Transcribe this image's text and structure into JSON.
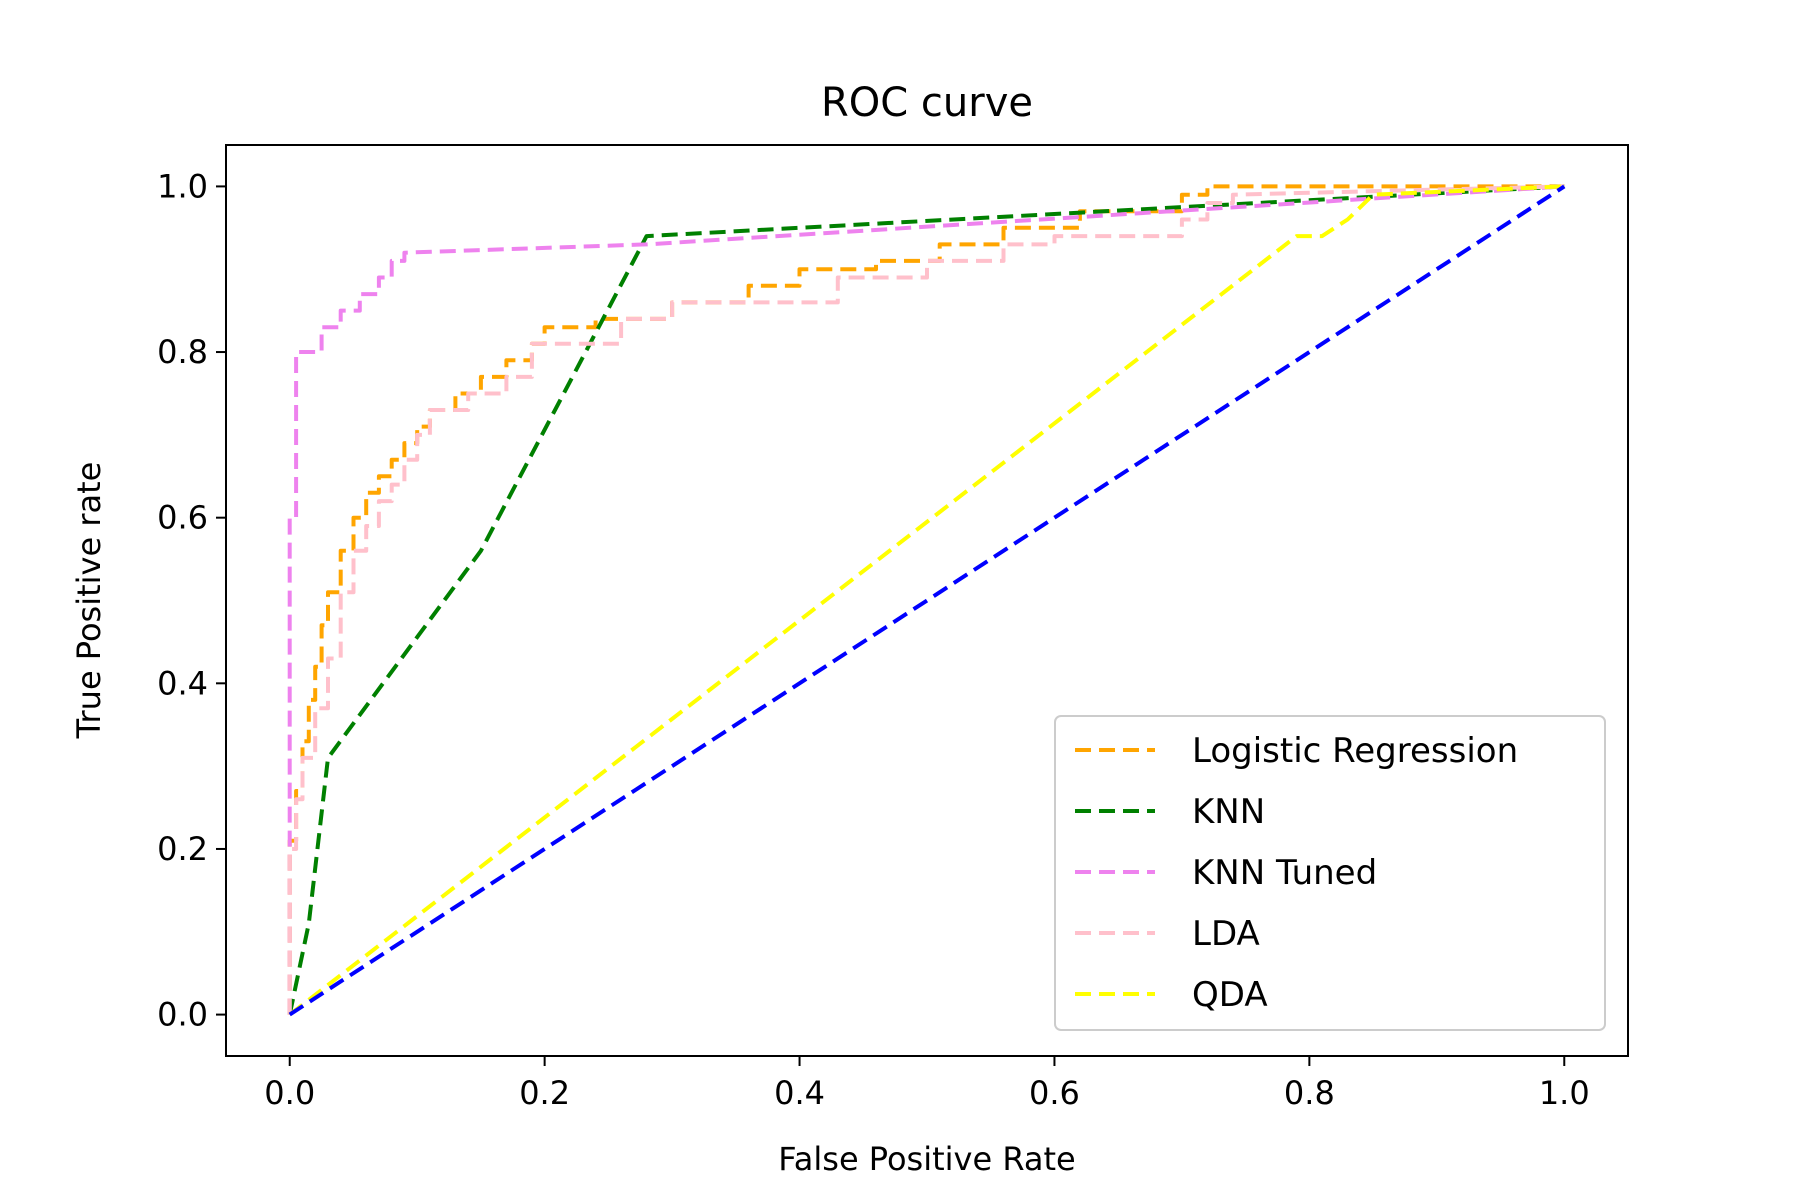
{
  "chart_data": {
    "type": "line",
    "title": "ROC curve",
    "xlabel": "False Positive Rate",
    "ylabel": "True Positive rate",
    "xlim": [
      -0.05,
      1.05
    ],
    "ylim": [
      -0.05,
      1.05
    ],
    "xticks": [
      0.0,
      0.2,
      0.4,
      0.6,
      0.8,
      1.0
    ],
    "yticks": [
      0.0,
      0.2,
      0.4,
      0.6,
      0.8,
      1.0
    ],
    "xtick_labels": [
      "0.0",
      "0.2",
      "0.4",
      "0.6",
      "0.8",
      "1.0"
    ],
    "ytick_labels": [
      "0.0",
      "0.2",
      "0.4",
      "0.6",
      "0.8",
      "1.0"
    ],
    "grid": false,
    "legend_position": "lower-right",
    "series": [
      {
        "name": "Logistic Regression",
        "color": "#ffa500",
        "x": [
          0.0,
          0.0,
          0.005,
          0.005,
          0.01,
          0.01,
          0.015,
          0.015,
          0.02,
          0.02,
          0.025,
          0.025,
          0.03,
          0.03,
          0.04,
          0.04,
          0.05,
          0.05,
          0.06,
          0.06,
          0.07,
          0.07,
          0.08,
          0.08,
          0.09,
          0.09,
          0.1,
          0.1,
          0.11,
          0.11,
          0.13,
          0.13,
          0.15,
          0.15,
          0.17,
          0.17,
          0.19,
          0.19,
          0.2,
          0.2,
          0.24,
          0.24,
          0.3,
          0.3,
          0.36,
          0.36,
          0.4,
          0.4,
          0.46,
          0.46,
          0.51,
          0.51,
          0.56,
          0.56,
          0.62,
          0.62,
          0.7,
          0.7,
          0.72,
          0.72,
          1.0
        ],
        "y": [
          0.0,
          0.21,
          0.21,
          0.27,
          0.27,
          0.33,
          0.33,
          0.38,
          0.38,
          0.42,
          0.42,
          0.47,
          0.47,
          0.51,
          0.51,
          0.56,
          0.56,
          0.6,
          0.6,
          0.63,
          0.63,
          0.65,
          0.65,
          0.67,
          0.67,
          0.69,
          0.69,
          0.71,
          0.71,
          0.73,
          0.73,
          0.75,
          0.75,
          0.77,
          0.77,
          0.79,
          0.79,
          0.81,
          0.81,
          0.83,
          0.83,
          0.84,
          0.84,
          0.86,
          0.86,
          0.88,
          0.88,
          0.9,
          0.9,
          0.91,
          0.91,
          0.93,
          0.93,
          0.95,
          0.95,
          0.97,
          0.97,
          0.99,
          0.99,
          1.0,
          1.0
        ]
      },
      {
        "name": "KNN",
        "color": "#008000",
        "x": [
          0.0,
          0.015,
          0.03,
          0.15,
          0.28,
          1.0
        ],
        "y": [
          0.0,
          0.11,
          0.31,
          0.56,
          0.94,
          1.0
        ]
      },
      {
        "name": "KNN Tuned",
        "color": "#ee82ee",
        "x": [
          0.0,
          0.0,
          0.005,
          0.005,
          0.025,
          0.025,
          0.04,
          0.04,
          0.055,
          0.055,
          0.07,
          0.07,
          0.08,
          0.08,
          0.09,
          0.09,
          0.28,
          1.0
        ],
        "y": [
          0.0,
          0.6,
          0.6,
          0.8,
          0.8,
          0.83,
          0.83,
          0.85,
          0.85,
          0.87,
          0.87,
          0.89,
          0.89,
          0.91,
          0.91,
          0.92,
          0.93,
          1.0
        ]
      },
      {
        "name": "LDA",
        "color": "#ffc0cb",
        "x": [
          0.0,
          0.0,
          0.005,
          0.005,
          0.01,
          0.01,
          0.02,
          0.02,
          0.03,
          0.03,
          0.04,
          0.04,
          0.05,
          0.05,
          0.06,
          0.06,
          0.07,
          0.07,
          0.08,
          0.08,
          0.09,
          0.09,
          0.1,
          0.1,
          0.11,
          0.11,
          0.14,
          0.14,
          0.17,
          0.17,
          0.19,
          0.19,
          0.26,
          0.26,
          0.3,
          0.3,
          0.43,
          0.43,
          0.5,
          0.5,
          0.56,
          0.56,
          0.6,
          0.6,
          0.7,
          0.7,
          0.72,
          0.72,
          0.74,
          0.74,
          1.0
        ],
        "y": [
          0.0,
          0.2,
          0.2,
          0.26,
          0.26,
          0.31,
          0.31,
          0.37,
          0.37,
          0.43,
          0.43,
          0.51,
          0.51,
          0.56,
          0.56,
          0.59,
          0.59,
          0.62,
          0.62,
          0.64,
          0.64,
          0.67,
          0.67,
          0.7,
          0.7,
          0.73,
          0.73,
          0.75,
          0.75,
          0.77,
          0.77,
          0.81,
          0.81,
          0.84,
          0.84,
          0.86,
          0.86,
          0.89,
          0.89,
          0.91,
          0.91,
          0.93,
          0.93,
          0.94,
          0.94,
          0.96,
          0.96,
          0.98,
          0.98,
          0.99,
          1.0
        ]
      },
      {
        "name": "QDA",
        "color": "#ffff00",
        "x": [
          0.0,
          0.79,
          0.79,
          0.81,
          0.81,
          0.83,
          0.83,
          0.85,
          0.85,
          1.0
        ],
        "y": [
          0.0,
          0.94,
          0.94,
          0.94,
          0.94,
          0.96,
          0.96,
          0.99,
          0.99,
          1.0
        ]
      },
      {
        "name": "",
        "color": "#0000ff",
        "x": [
          0.0,
          1.0
        ],
        "y": [
          0.0,
          1.0
        ]
      }
    ]
  }
}
